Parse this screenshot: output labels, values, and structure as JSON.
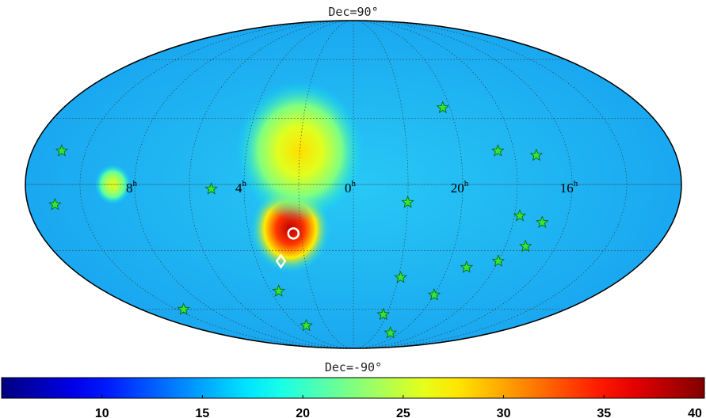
{
  "chart_data": {
    "type": "heatmap",
    "projection": "mollweide",
    "title": "",
    "top_label": "Dec=90°",
    "bottom_label": "Dec=-90°",
    "ra_labels": [
      {
        "text": "8",
        "unit": "h",
        "ra_hours": 8
      },
      {
        "text": "4",
        "unit": "h",
        "ra_hours": 4
      },
      {
        "text": "0",
        "unit": "h",
        "ra_hours": 0
      },
      {
        "text": "20",
        "unit": "h",
        "ra_hours": 20
      },
      {
        "text": "16",
        "unit": "h",
        "ra_hours": 16
      }
    ],
    "colorbar": {
      "min": 5,
      "max": 40,
      "ticks": [
        10,
        15,
        20,
        25,
        30,
        35,
        40
      ],
      "colormap": "jet"
    },
    "hotspots": [
      {
        "ra_hours": 2.4,
        "dec_deg": -20,
        "value": 38,
        "sigma_deg": 22
      },
      {
        "ra_hours": 2.0,
        "dec_deg": 15,
        "value": 28,
        "sigma_deg": 35
      },
      {
        "ra_hours": 8.8,
        "dec_deg": 0,
        "value": 26,
        "sigma_deg": 10
      }
    ],
    "stars": [
      {
        "ra_hours": 20.3,
        "dec_deg": 35
      },
      {
        "ra_hours": 18.6,
        "dec_deg": 15
      },
      {
        "ra_hours": 17.2,
        "dec_deg": 13
      },
      {
        "ra_hours": 22.0,
        "dec_deg": -8
      },
      {
        "ra_hours": 17.8,
        "dec_deg": -14
      },
      {
        "ra_hours": 16.9,
        "dec_deg": -17
      },
      {
        "ra_hours": 18.0,
        "dec_deg": -35
      },
      {
        "ra_hours": 19.2,
        "dec_deg": -38
      },
      {
        "ra_hours": 17.2,
        "dec_deg": -28
      },
      {
        "ra_hours": 21.9,
        "dec_deg": -43
      },
      {
        "ra_hours": 20.0,
        "dec_deg": -52
      },
      {
        "ra_hours": 22.2,
        "dec_deg": -63
      },
      {
        "ra_hours": 20.8,
        "dec_deg": -75
      },
      {
        "ra_hours": 5.2,
        "dec_deg": -2
      },
      {
        "ra_hours": 3.6,
        "dec_deg": -50
      },
      {
        "ra_hours": 3.4,
        "dec_deg": -70
      },
      {
        "ra_hours": 9.6,
        "dec_deg": -60
      },
      {
        "ra_hours": 10.9,
        "dec_deg": 15
      },
      {
        "ra_hours": 11.0,
        "dec_deg": -9
      }
    ],
    "markers": [
      {
        "shape": "circle",
        "ra_hours": 2.3,
        "dec_deg": -22
      },
      {
        "shape": "diamond",
        "ra_hours": 3.0,
        "dec_deg": -35
      }
    ]
  }
}
